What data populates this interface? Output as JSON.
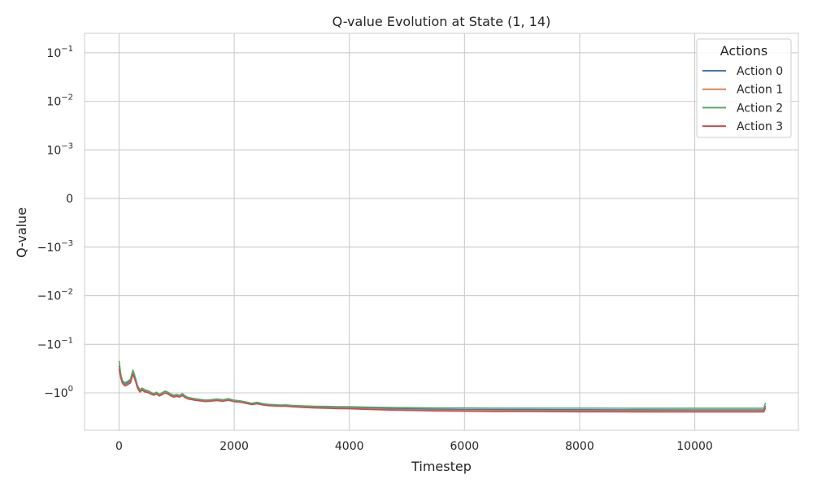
{
  "chart_data": {
    "type": "line",
    "title": "Q-value Evolution at State (1, 14)",
    "xlabel": "Timestep",
    "ylabel": "Q-value",
    "xlim": [
      -600,
      11800
    ],
    "x_ticks": [
      0,
      2000,
      4000,
      6000,
      8000,
      10000
    ],
    "y_scale": "symlog",
    "y_linthresh": 0.001,
    "y_ticks": [
      {
        "value": 0.1,
        "label": "10",
        "exp": "−1"
      },
      {
        "value": 0.01,
        "label": "10",
        "exp": "−2"
      },
      {
        "value": 0.001,
        "label": "10",
        "exp": "−3"
      },
      {
        "value": 0,
        "label": "0",
        "exp": ""
      },
      {
        "value": -0.001,
        "label": "−10",
        "exp": "−3"
      },
      {
        "value": -0.01,
        "label": "−10",
        "exp": "−2"
      },
      {
        "value": -0.1,
        "label": "−10",
        "exp": "−1"
      },
      {
        "value": -1,
        "label": "−10",
        "exp": "0"
      }
    ],
    "grid": true,
    "legend": {
      "title": "Actions",
      "placement": "top-right"
    },
    "x": [
      0,
      30,
      60,
      100,
      150,
      200,
      240,
      280,
      320,
      360,
      400,
      450,
      500,
      550,
      600,
      650,
      700,
      750,
      800,
      850,
      900,
      950,
      1000,
      1050,
      1100,
      1150,
      1200,
      1300,
      1400,
      1500,
      1600,
      1700,
      1800,
      1900,
      2000,
      2100,
      2200,
      2300,
      2400,
      2500,
      2600,
      2700,
      2800,
      2900,
      3000,
      3200,
      3400,
      3600,
      3800,
      4000,
      4300,
      4600,
      5000,
      5500,
      6000,
      6500,
      7000,
      7500,
      8000,
      9000,
      10000,
      10500,
      11000,
      11200,
      11230
    ],
    "series": [
      {
        "name": "Action 0",
        "color": "#4c72b0",
        "values": [
          -0.28,
          -0.45,
          -0.6,
          -0.67,
          -0.62,
          -0.56,
          -0.36,
          -0.5,
          -0.74,
          -0.9,
          -0.83,
          -0.9,
          -0.93,
          -1.0,
          -1.06,
          -1.0,
          -1.1,
          -1.02,
          -0.95,
          -1.0,
          -1.1,
          -1.16,
          -1.12,
          -1.16,
          -1.08,
          -1.2,
          -1.28,
          -1.35,
          -1.4,
          -1.45,
          -1.42,
          -1.38,
          -1.43,
          -1.36,
          -1.46,
          -1.5,
          -1.58,
          -1.68,
          -1.62,
          -1.72,
          -1.78,
          -1.8,
          -1.83,
          -1.82,
          -1.87,
          -1.92,
          -1.96,
          -1.98,
          -2.02,
          -2.02,
          -2.06,
          -2.1,
          -2.14,
          -2.17,
          -2.2,
          -2.22,
          -2.22,
          -2.23,
          -2.23,
          -2.24,
          -2.25,
          -2.25,
          -2.25,
          -2.25,
          -1.85
        ]
      },
      {
        "name": "Action 1",
        "color": "#dd8452",
        "values": [
          -0.3,
          -0.47,
          -0.62,
          -0.7,
          -0.66,
          -0.6,
          -0.39,
          -0.53,
          -0.78,
          -0.94,
          -0.86,
          -0.94,
          -0.97,
          -1.04,
          -1.1,
          -1.04,
          -1.14,
          -1.06,
          -0.99,
          -1.04,
          -1.14,
          -1.2,
          -1.16,
          -1.2,
          -1.12,
          -1.24,
          -1.32,
          -1.39,
          -1.44,
          -1.49,
          -1.46,
          -1.42,
          -1.47,
          -1.4,
          -1.5,
          -1.54,
          -1.62,
          -1.72,
          -1.66,
          -1.76,
          -1.82,
          -1.84,
          -1.87,
          -1.86,
          -1.91,
          -1.97,
          -2.02,
          -2.04,
          -2.08,
          -2.09,
          -2.14,
          -2.19,
          -2.24,
          -2.28,
          -2.31,
          -2.33,
          -2.34,
          -2.35,
          -2.35,
          -2.36,
          -2.37,
          -2.37,
          -2.37,
          -2.37,
          -1.95
        ]
      },
      {
        "name": "Action 2",
        "color": "#55a868",
        "values": [
          -0.22,
          -0.42,
          -0.56,
          -0.62,
          -0.58,
          -0.52,
          -0.34,
          -0.47,
          -0.7,
          -0.86,
          -0.8,
          -0.87,
          -0.9,
          -0.97,
          -1.03,
          -0.97,
          -1.07,
          -0.99,
          -0.92,
          -0.97,
          -1.06,
          -1.12,
          -1.08,
          -1.12,
          -1.04,
          -1.16,
          -1.24,
          -1.31,
          -1.36,
          -1.41,
          -1.38,
          -1.34,
          -1.39,
          -1.32,
          -1.42,
          -1.46,
          -1.54,
          -1.64,
          -1.57,
          -1.67,
          -1.73,
          -1.75,
          -1.78,
          -1.77,
          -1.81,
          -1.86,
          -1.89,
          -1.9,
          -1.93,
          -1.93,
          -1.96,
          -1.99,
          -2.02,
          -2.04,
          -2.05,
          -2.06,
          -2.06,
          -2.06,
          -2.06,
          -2.07,
          -2.07,
          -2.07,
          -2.07,
          -2.07,
          -1.6
        ]
      },
      {
        "name": "Action 3",
        "color": "#c44e52",
        "values": [
          -0.32,
          -0.5,
          -0.64,
          -0.72,
          -0.68,
          -0.62,
          -0.41,
          -0.55,
          -0.8,
          -0.96,
          -0.88,
          -0.96,
          -0.99,
          -1.06,
          -1.12,
          -1.06,
          -1.16,
          -1.08,
          -1.01,
          -1.06,
          -1.16,
          -1.22,
          -1.18,
          -1.22,
          -1.14,
          -1.26,
          -1.34,
          -1.41,
          -1.46,
          -1.51,
          -1.48,
          -1.44,
          -1.49,
          -1.42,
          -1.52,
          -1.56,
          -1.64,
          -1.74,
          -1.68,
          -1.78,
          -1.84,
          -1.86,
          -1.89,
          -1.88,
          -1.93,
          -1.99,
          -2.05,
          -2.07,
          -2.11,
          -2.13,
          -2.19,
          -2.24,
          -2.3,
          -2.35,
          -2.39,
          -2.42,
          -2.43,
          -2.44,
          -2.45,
          -2.46,
          -2.47,
          -2.47,
          -2.47,
          -2.47,
          -2.05
        ]
      }
    ]
  }
}
